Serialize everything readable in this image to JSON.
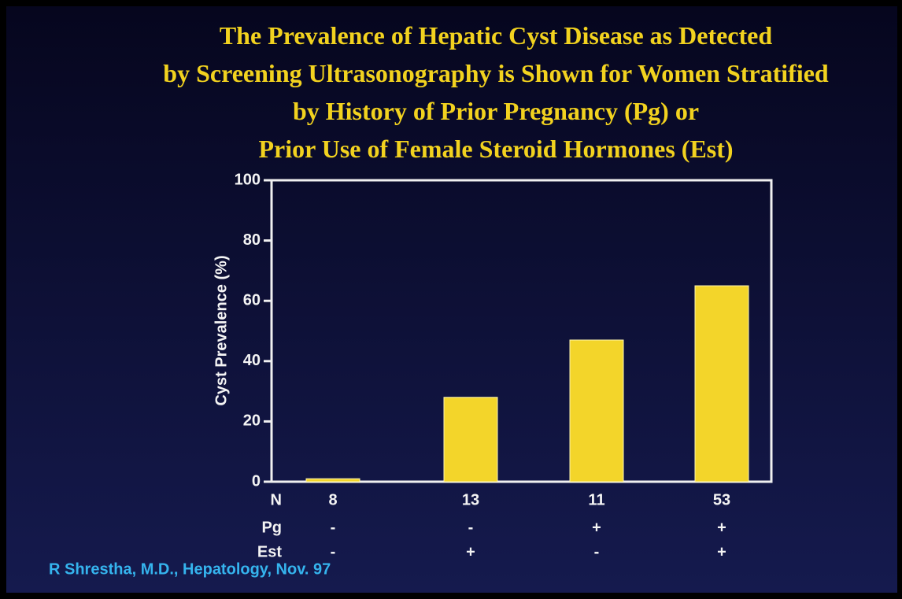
{
  "chart_data": {
    "type": "bar",
    "title": [
      "The Prevalence of Hepatic Cyst Disease as Detected",
      "by Screening Ultrasonography is Shown for Women Stratified",
      "by History of Prior Pregnancy (Pg) or",
      "Prior Use of Female Steroid Hormones (Est)"
    ],
    "y_label": "Cyst Prevalence (%)",
    "categories_label": "N",
    "categories": [
      "8",
      "13",
      "11",
      "53"
    ],
    "rows": [
      {
        "label": "Pg",
        "values": [
          "-",
          "-",
          "+",
          "+"
        ]
      },
      {
        "label": "Est",
        "values": [
          "-",
          "+",
          "-",
          "+"
        ]
      }
    ],
    "values": [
      1,
      28,
      47,
      65
    ],
    "color": "#f3d52a",
    "ylim": [
      0,
      100
    ],
    "yticks": [
      0,
      20,
      40,
      60,
      80,
      100
    ],
    "grid": false,
    "source": "R Shrestha, M.D., Hepatology, Nov. 97"
  }
}
